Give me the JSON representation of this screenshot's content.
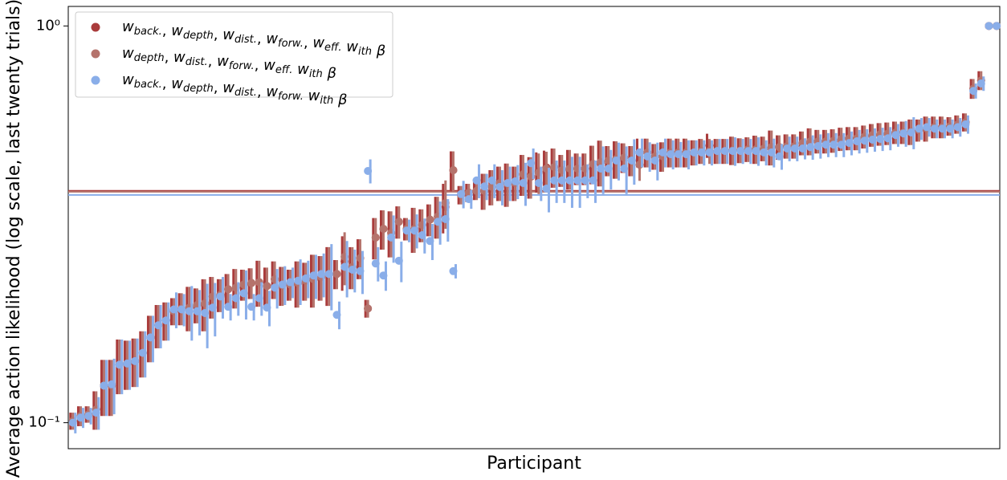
{
  "chart_data": {
    "type": "errorbar",
    "xlabel": "Participant",
    "ylabel": "Average action likelihood (log scale, last twenty trials)",
    "yscale": "log",
    "ylim": [
      0.086,
      1.12
    ],
    "yticks": [
      {
        "value": 0.1,
        "label": "10⁻¹"
      },
      {
        "value": 1,
        "label": "10⁰"
      }
    ],
    "xlim": [
      0.4,
      120.4
    ],
    "legend": "upper left",
    "x": [
      1,
      2,
      3,
      4,
      5,
      6,
      7,
      8,
      9,
      10,
      11,
      12,
      13,
      14,
      15,
      16,
      17,
      18,
      19,
      20,
      21,
      22,
      23,
      24,
      25,
      26,
      27,
      28,
      29,
      30,
      31,
      32,
      33,
      34,
      35,
      36,
      37,
      38,
      39,
      40,
      41,
      42,
      43,
      44,
      45,
      46,
      47,
      48,
      49,
      50,
      51,
      52,
      53,
      54,
      55,
      56,
      57,
      58,
      59,
      60,
      61,
      62,
      63,
      64,
      65,
      66,
      67,
      68,
      69,
      70,
      71,
      72,
      73,
      74,
      75,
      76,
      77,
      78,
      79,
      80,
      81,
      82,
      83,
      84,
      85,
      86,
      87,
      88,
      89,
      90,
      91,
      92,
      93,
      94,
      95,
      96,
      97,
      98,
      99,
      100,
      101,
      102,
      103,
      104,
      105,
      106,
      107,
      108,
      109,
      110,
      111,
      112,
      113,
      114,
      115,
      116,
      117,
      118,
      119,
      120
    ],
    "series": [
      {
        "name": "wback., wdepth, wdist., wforw., weff. with β",
        "color": "#a93b3b",
        "values": [
          0.101,
          0.104,
          0.105,
          0.108,
          0.124,
          0.124,
          0.14,
          0.141,
          0.143,
          0.15,
          0.164,
          0.176,
          0.181,
          0.191,
          0.194,
          0.195,
          0.198,
          0.2,
          0.208,
          0.21,
          0.217,
          0.219,
          0.223,
          0.225,
          0.226,
          0.221,
          0.23,
          0.222,
          0.223,
          0.225,
          0.228,
          0.23,
          0.233,
          0.237,
          0.237,
          0.255,
          0.247,
          0.26,
          0.194,
          0.293,
          0.308,
          0.301,
          0.321,
          0.308,
          0.308,
          0.315,
          0.325,
          0.331,
          0.35,
          0.433,
          0.375,
          0.38,
          0.384,
          0.384,
          0.393,
          0.402,
          0.4,
          0.402,
          0.423,
          0.417,
          0.43,
          0.44,
          0.441,
          0.433,
          0.437,
          0.437,
          0.437,
          0.449,
          0.454,
          0.458,
          0.462,
          0.466,
          0.458,
          0.48,
          0.48,
          0.469,
          0.469,
          0.48,
          0.48,
          0.48,
          0.48,
          0.484,
          0.5,
          0.484,
          0.484,
          0.486,
          0.486,
          0.489,
          0.489,
          0.491,
          0.495,
          0.495,
          0.498,
          0.498,
          0.507,
          0.512,
          0.512,
          0.512,
          0.514,
          0.519,
          0.521,
          0.521,
          0.526,
          0.531,
          0.534,
          0.536,
          0.539,
          0.539,
          0.541,
          0.546,
          0.551,
          0.556,
          0.556,
          0.559,
          0.565,
          0.572,
          0.695,
          0.729,
          1.0,
          1.0
        ],
        "errors": [
          0.005,
          0.006,
          0.005,
          0.012,
          0.02,
          0.02,
          0.022,
          0.02,
          0.02,
          0.02,
          0.022,
          0.022,
          0.02,
          0.015,
          0.018,
          0.025,
          0.02,
          0.03,
          0.025,
          0.02,
          0.02,
          0.025,
          0.02,
          0.02,
          0.03,
          0.025,
          0.025,
          0.025,
          0.02,
          0.03,
          0.025,
          0.035,
          0.03,
          0.04,
          0.02,
          0.04,
          0.03,
          0.03,
          0.01,
          0.035,
          0.035,
          0.04,
          0.03,
          0.02,
          0.04,
          0.03,
          0.03,
          0.04,
          0.05,
          0.05,
          0.02,
          0.02,
          0.02,
          0.04,
          0.04,
          0.04,
          0.05,
          0.04,
          0.05,
          0.05,
          0.05,
          0.045,
          0.05,
          0.04,
          0.05,
          0.04,
          0.04,
          0.05,
          0.06,
          0.04,
          0.05,
          0.04,
          0.04,
          0.04,
          0.04,
          0.035,
          0.04,
          0.04,
          0.04,
          0.04,
          0.035,
          0.035,
          0.035,
          0.035,
          0.035,
          0.04,
          0.035,
          0.035,
          0.04,
          0.035,
          0.05,
          0.035,
          0.035,
          0.035,
          0.035,
          0.04,
          0.035,
          0.035,
          0.035,
          0.035,
          0.035,
          0.035,
          0.035,
          0.035,
          0.035,
          0.035,
          0.035,
          0.035,
          0.04,
          0.035,
          0.04,
          0.035,
          0.035,
          0.03,
          0.03,
          0.03,
          0.04,
          0.04,
          0.0,
          0.0
        ]
      },
      {
        "name": "wdepth, wdist., wforw., weff. with β",
        "color": "#b5736c",
        "values": [
          0.101,
          0.104,
          0.105,
          0.108,
          0.124,
          0.124,
          0.14,
          0.141,
          0.143,
          0.15,
          0.164,
          0.176,
          0.181,
          0.191,
          0.194,
          0.195,
          0.198,
          0.2,
          0.208,
          0.21,
          0.217,
          0.219,
          0.223,
          0.225,
          0.226,
          0.221,
          0.23,
          0.222,
          0.223,
          0.225,
          0.228,
          0.23,
          0.233,
          0.237,
          0.237,
          0.262,
          0.247,
          0.26,
          0.194,
          0.293,
          0.308,
          0.301,
          0.321,
          0.308,
          0.308,
          0.315,
          0.325,
          0.331,
          0.358,
          0.433,
          0.375,
          0.38,
          0.384,
          0.384,
          0.393,
          0.402,
          0.4,
          0.402,
          0.423,
          0.417,
          0.427,
          0.437,
          0.441,
          0.433,
          0.437,
          0.437,
          0.437,
          0.449,
          0.454,
          0.458,
          0.462,
          0.466,
          0.458,
          0.447,
          0.48,
          0.469,
          0.469,
          0.48,
          0.48,
          0.48,
          0.48,
          0.484,
          0.484,
          0.484,
          0.484,
          0.486,
          0.486,
          0.489,
          0.489,
          0.491,
          0.495,
          0.495,
          0.498,
          0.498,
          0.507,
          0.512,
          0.512,
          0.512,
          0.514,
          0.519,
          0.521,
          0.521,
          0.526,
          0.531,
          0.534,
          0.536,
          0.539,
          0.539,
          0.541,
          0.546,
          0.551,
          0.556,
          0.556,
          0.559,
          0.565,
          0.572,
          0.695,
          0.729,
          1.0,
          1.0
        ],
        "errors": [
          0.005,
          0.006,
          0.005,
          0.012,
          0.02,
          0.02,
          0.022,
          0.02,
          0.02,
          0.02,
          0.022,
          0.022,
          0.02,
          0.015,
          0.018,
          0.025,
          0.02,
          0.03,
          0.025,
          0.02,
          0.02,
          0.025,
          0.02,
          0.02,
          0.03,
          0.025,
          0.025,
          0.025,
          0.02,
          0.03,
          0.025,
          0.035,
          0.03,
          0.04,
          0.02,
          0.04,
          0.03,
          0.03,
          0.01,
          0.035,
          0.035,
          0.04,
          0.03,
          0.02,
          0.04,
          0.03,
          0.03,
          0.04,
          0.05,
          0.05,
          0.02,
          0.02,
          0.02,
          0.04,
          0.04,
          0.04,
          0.05,
          0.04,
          0.05,
          0.05,
          0.05,
          0.045,
          0.05,
          0.04,
          0.05,
          0.04,
          0.04,
          0.05,
          0.06,
          0.04,
          0.05,
          0.04,
          0.04,
          0.04,
          0.04,
          0.035,
          0.04,
          0.04,
          0.04,
          0.04,
          0.035,
          0.035,
          0.035,
          0.035,
          0.035,
          0.04,
          0.035,
          0.035,
          0.04,
          0.035,
          0.05,
          0.035,
          0.035,
          0.035,
          0.035,
          0.04,
          0.035,
          0.035,
          0.035,
          0.035,
          0.035,
          0.035,
          0.035,
          0.035,
          0.035,
          0.035,
          0.035,
          0.035,
          0.04,
          0.035,
          0.04,
          0.035,
          0.035,
          0.03,
          0.03,
          0.03,
          0.04,
          0.04,
          0.0,
          0.0
        ]
      },
      {
        "name": "wback., wdepth, wdist., wforw. with β",
        "color": "#8aaee9",
        "values": [
          0.1,
          0.103,
          0.104,
          0.106,
          0.124,
          0.125,
          0.14,
          0.141,
          0.143,
          0.15,
          0.164,
          0.176,
          0.181,
          0.193,
          0.193,
          0.191,
          0.191,
          0.189,
          0.195,
          0.208,
          0.196,
          0.206,
          0.212,
          0.196,
          0.206,
          0.195,
          0.219,
          0.223,
          0.226,
          0.228,
          0.231,
          0.235,
          0.237,
          0.237,
          0.187,
          0.247,
          0.243,
          0.241,
          0.431,
          0.252,
          0.235,
          0.293,
          0.256,
          0.305,
          0.305,
          0.297,
          0.287,
          0.321,
          0.326,
          0.241,
          0.377,
          0.366,
          0.408,
          0.394,
          0.408,
          0.393,
          0.402,
          0.406,
          0.402,
          0.451,
          0.402,
          0.389,
          0.408,
          0.408,
          0.408,
          0.408,
          0.408,
          0.408,
          0.437,
          0.437,
          0.458,
          0.437,
          0.458,
          0.48,
          0.469,
          0.458,
          0.48,
          0.475,
          0.475,
          0.475,
          0.48,
          0.48,
          0.48,
          0.484,
          0.484,
          0.484,
          0.484,
          0.484,
          0.484,
          0.48,
          0.48,
          0.469,
          0.491,
          0.491,
          0.491,
          0.495,
          0.498,
          0.502,
          0.502,
          0.502,
          0.507,
          0.512,
          0.514,
          0.517,
          0.519,
          0.521,
          0.531,
          0.536,
          0.539,
          0.551,
          0.556,
          0.551,
          0.551,
          0.551,
          0.556,
          0.565,
          0.686,
          0.716,
          1.0,
          1.0
        ],
        "errors": [
          0.006,
          0.006,
          0.005,
          0.01,
          0.02,
          0.02,
          0.022,
          0.02,
          0.02,
          0.02,
          0.022,
          0.022,
          0.02,
          0.02,
          0.018,
          0.03,
          0.025,
          0.035,
          0.03,
          0.025,
          0.015,
          0.02,
          0.03,
          0.015,
          0.02,
          0.02,
          0.025,
          0.025,
          0.02,
          0.03,
          0.025,
          0.03,
          0.03,
          0.045,
          0.015,
          0.04,
          0.03,
          0.03,
          0.03,
          0.025,
          0.02,
          0.04,
          0.03,
          0.02,
          0.03,
          0.03,
          0.03,
          0.04,
          0.04,
          0.01,
          0.03,
          0.02,
          0.04,
          0.03,
          0.04,
          0.04,
          0.04,
          0.04,
          0.05,
          0.04,
          0.04,
          0.05,
          0.05,
          0.05,
          0.06,
          0.06,
          0.04,
          0.05,
          0.06,
          0.05,
          0.05,
          0.06,
          0.06,
          0.04,
          0.04,
          0.05,
          0.04,
          0.04,
          0.035,
          0.04,
          0.035,
          0.035,
          0.035,
          0.035,
          0.035,
          0.04,
          0.035,
          0.035,
          0.04,
          0.035,
          0.04,
          0.035,
          0.035,
          0.035,
          0.03,
          0.035,
          0.035,
          0.035,
          0.035,
          0.035,
          0.035,
          0.035,
          0.035,
          0.035,
          0.035,
          0.035,
          0.035,
          0.04,
          0.05,
          0.035,
          0.03,
          0.03,
          0.03,
          0.03,
          0.03,
          0.03,
          0.03,
          0.03,
          0.0,
          0.0
        ]
      }
    ],
    "hlines": [
      {
        "value": 0.384,
        "color": "#a93b3b"
      },
      {
        "value": 0.382,
        "color": "#b5736c"
      },
      {
        "value": 0.375,
        "color": "#8aaee9"
      }
    ]
  }
}
